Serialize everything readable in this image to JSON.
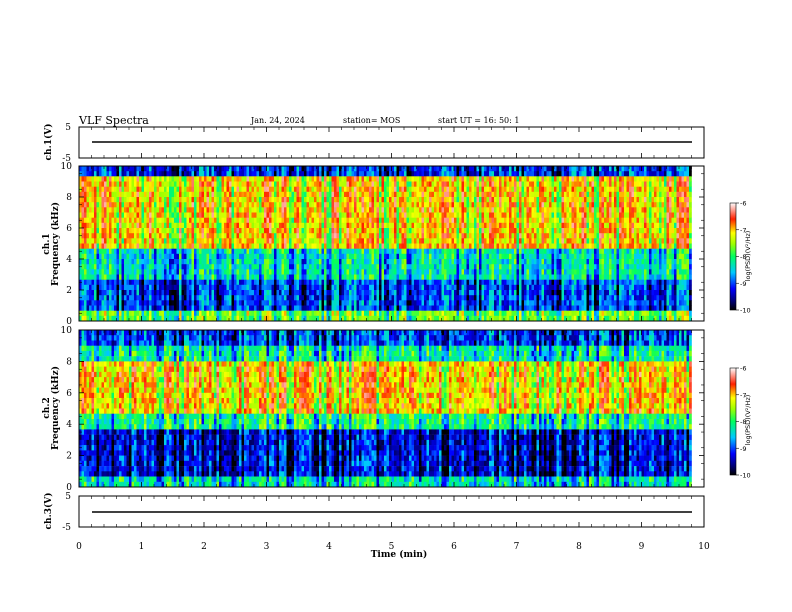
{
  "header": {
    "title": "VLF Spectra",
    "date": "Jan. 24, 2024",
    "station": "station= MOS",
    "start": "start  UT =   16: 50: 1"
  },
  "chart_data": [
    {
      "type": "line",
      "panel": "ch1-waveform",
      "ylabel": "ch.1(V)",
      "ylim": [
        -5,
        5
      ],
      "y_ticks": [
        "5",
        "-5"
      ],
      "x": [
        0,
        9.8
      ],
      "values": [
        0,
        0
      ]
    },
    {
      "type": "heatmap",
      "panel": "ch1-spectrogram",
      "ylabel": "ch.1\nFrequency  (kHz)",
      "ylim": [
        0,
        10
      ],
      "y_ticks": [
        "0",
        "2",
        "4",
        "6",
        "8",
        "10"
      ],
      "xlim": [
        0,
        9.8
      ],
      "colorbar": {
        "label": "log(PSD)(V²/Hz)",
        "ticks": [
          "-6",
          "-7",
          "-8",
          "-9",
          "-10"
        ],
        "range": [
          -10,
          -6
        ]
      }
    },
    {
      "type": "heatmap",
      "panel": "ch2-spectrogram",
      "ylabel": "ch.2\nFrequency  (kHz)",
      "ylim": [
        0,
        10
      ],
      "y_ticks": [
        "0",
        "2",
        "4",
        "6",
        "8",
        "10"
      ],
      "xlim": [
        0,
        9.8
      ],
      "colorbar": {
        "label": "log(PSD)(V²/Hz)",
        "ticks": [
          "-6",
          "-7",
          "-8",
          "-9",
          "-10"
        ],
        "range": [
          -10,
          -6
        ]
      }
    },
    {
      "type": "line",
      "panel": "ch3-waveform",
      "ylabel": "ch.3(V)",
      "ylim": [
        -5,
        5
      ],
      "y_ticks": [
        "5",
        "-5"
      ],
      "x": [
        0,
        9.8
      ],
      "values": [
        0,
        0
      ]
    }
  ],
  "x_axis": {
    "label": "Time  (min)",
    "range": [
      0,
      10
    ],
    "ticks": [
      "0",
      "1",
      "2",
      "3",
      "4",
      "5",
      "6",
      "7",
      "8",
      "9",
      "10"
    ]
  }
}
